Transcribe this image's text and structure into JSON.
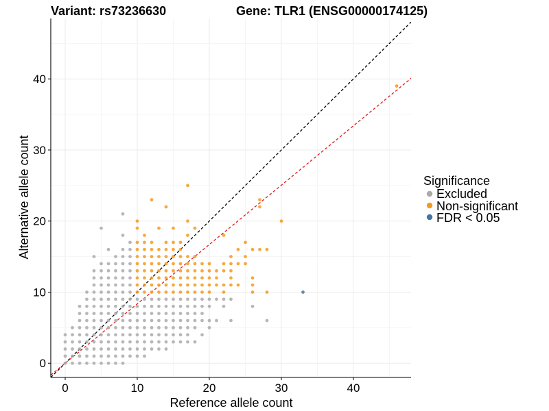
{
  "chart_data": {
    "type": "scatter",
    "title_left": "Variant: rs73236630",
    "title_right": "Gene: TLR1 (ENSG00000174125)",
    "xlabel": "Reference allele count",
    "ylabel": "Alternative allele count",
    "xlim": [
      -2,
      48
    ],
    "ylim": [
      -2,
      48.5
    ],
    "xticks": [
      0,
      10,
      20,
      30,
      40
    ],
    "yticks": [
      0,
      10,
      20,
      30,
      40
    ],
    "grid": true,
    "legend": {
      "title": "Significance",
      "position": "right",
      "entries": [
        {
          "label": "Excluded",
          "color": "#aaaaaa"
        },
        {
          "label": "Non-significant",
          "color": "#f59a1b"
        },
        {
          "label": "FDR < 0.05",
          "color": "#4575a8"
        }
      ]
    },
    "reference_lines": [
      {
        "name": "identity",
        "slope": 1,
        "intercept": 0,
        "color": "#000000",
        "style": "dashed"
      },
      {
        "name": "fit",
        "slope": 0.835,
        "intercept": 0,
        "color": "#e31a1c",
        "style": "dashed"
      }
    ],
    "series": [
      {
        "name": "Excluded",
        "color": "#aaaaaa",
        "points": [
          [
            0,
            0
          ],
          [
            0,
            1
          ],
          [
            0,
            2
          ],
          [
            0,
            3
          ],
          [
            0,
            4
          ],
          [
            1,
            0
          ],
          [
            1,
            1
          ],
          [
            1,
            2
          ],
          [
            1,
            3
          ],
          [
            1,
            4
          ],
          [
            1,
            5
          ],
          [
            2,
            0
          ],
          [
            2,
            1
          ],
          [
            2,
            2
          ],
          [
            2,
            3
          ],
          [
            2,
            4
          ],
          [
            2,
            5
          ],
          [
            2,
            6
          ],
          [
            2,
            7
          ],
          [
            2,
            8
          ],
          [
            3,
            0
          ],
          [
            3,
            1
          ],
          [
            3,
            2
          ],
          [
            3,
            3
          ],
          [
            3,
            4
          ],
          [
            3,
            5
          ],
          [
            3,
            6
          ],
          [
            3,
            7
          ],
          [
            3,
            8
          ],
          [
            3,
            9
          ],
          [
            3,
            10
          ],
          [
            4,
            0
          ],
          [
            4,
            1
          ],
          [
            4,
            2
          ],
          [
            4,
            3
          ],
          [
            4,
            4
          ],
          [
            4,
            5
          ],
          [
            4,
            6
          ],
          [
            4,
            7
          ],
          [
            4,
            8
          ],
          [
            4,
            9
          ],
          [
            4,
            10
          ],
          [
            4,
            11
          ],
          [
            4,
            12
          ],
          [
            4,
            13
          ],
          [
            4,
            15
          ],
          [
            5,
            0
          ],
          [
            5,
            1
          ],
          [
            5,
            2
          ],
          [
            5,
            3
          ],
          [
            5,
            4
          ],
          [
            5,
            5
          ],
          [
            5,
            6
          ],
          [
            5,
            7
          ],
          [
            5,
            8
          ],
          [
            5,
            9
          ],
          [
            5,
            10
          ],
          [
            5,
            11
          ],
          [
            5,
            12
          ],
          [
            5,
            13
          ],
          [
            5,
            14
          ],
          [
            5,
            19
          ],
          [
            6,
            0
          ],
          [
            6,
            1
          ],
          [
            6,
            2
          ],
          [
            6,
            3
          ],
          [
            6,
            4
          ],
          [
            6,
            5
          ],
          [
            6,
            6
          ],
          [
            6,
            7
          ],
          [
            6,
            8
          ],
          [
            6,
            9
          ],
          [
            6,
            10
          ],
          [
            6,
            11
          ],
          [
            6,
            12
          ],
          [
            6,
            13
          ],
          [
            6,
            14
          ],
          [
            6,
            16
          ],
          [
            7,
            0
          ],
          [
            7,
            1
          ],
          [
            7,
            2
          ],
          [
            7,
            3
          ],
          [
            7,
            4
          ],
          [
            7,
            5
          ],
          [
            7,
            6
          ],
          [
            7,
            7
          ],
          [
            7,
            8
          ],
          [
            7,
            9
          ],
          [
            7,
            10
          ],
          [
            7,
            11
          ],
          [
            7,
            12
          ],
          [
            7,
            13
          ],
          [
            7,
            14
          ],
          [
            7,
            15
          ],
          [
            8,
            0
          ],
          [
            8,
            1
          ],
          [
            8,
            2
          ],
          [
            8,
            3
          ],
          [
            8,
            4
          ],
          [
            8,
            5
          ],
          [
            8,
            6
          ],
          [
            8,
            7
          ],
          [
            8,
            8
          ],
          [
            8,
            9
          ],
          [
            8,
            10
          ],
          [
            8,
            11
          ],
          [
            8,
            12
          ],
          [
            8,
            13
          ],
          [
            8,
            14
          ],
          [
            8,
            15
          ],
          [
            8,
            16
          ],
          [
            8,
            18
          ],
          [
            8,
            21
          ],
          [
            9,
            1
          ],
          [
            9,
            2
          ],
          [
            9,
            3
          ],
          [
            9,
            4
          ],
          [
            9,
            5
          ],
          [
            9,
            6
          ],
          [
            9,
            7
          ],
          [
            9,
            8
          ],
          [
            9,
            9
          ],
          [
            9,
            10
          ],
          [
            9,
            11
          ],
          [
            9,
            12
          ],
          [
            9,
            13
          ],
          [
            9,
            14
          ],
          [
            9,
            15
          ],
          [
            9,
            16
          ],
          [
            9,
            17
          ],
          [
            10,
            1
          ],
          [
            10,
            2
          ],
          [
            10,
            3
          ],
          [
            10,
            4
          ],
          [
            10,
            5
          ],
          [
            10,
            6
          ],
          [
            10,
            7
          ],
          [
            10,
            8
          ],
          [
            10,
            9
          ],
          [
            11,
            1
          ],
          [
            11,
            2
          ],
          [
            11,
            3
          ],
          [
            11,
            4
          ],
          [
            11,
            5
          ],
          [
            11,
            6
          ],
          [
            11,
            7
          ],
          [
            11,
            8
          ],
          [
            11,
            9
          ],
          [
            12,
            2
          ],
          [
            12,
            3
          ],
          [
            12,
            4
          ],
          [
            12,
            5
          ],
          [
            12,
            6
          ],
          [
            12,
            7
          ],
          [
            12,
            8
          ],
          [
            12,
            9
          ],
          [
            13,
            2
          ],
          [
            13,
            3
          ],
          [
            13,
            4
          ],
          [
            13,
            5
          ],
          [
            13,
            6
          ],
          [
            13,
            7
          ],
          [
            13,
            8
          ],
          [
            13,
            9
          ],
          [
            14,
            2
          ],
          [
            14,
            3
          ],
          [
            14,
            4
          ],
          [
            14,
            5
          ],
          [
            14,
            6
          ],
          [
            14,
            7
          ],
          [
            14,
            8
          ],
          [
            14,
            9
          ],
          [
            15,
            3
          ],
          [
            15,
            4
          ],
          [
            15,
            5
          ],
          [
            15,
            6
          ],
          [
            15,
            7
          ],
          [
            15,
            8
          ],
          [
            15,
            9
          ],
          [
            16,
            3
          ],
          [
            16,
            4
          ],
          [
            16,
            5
          ],
          [
            16,
            6
          ],
          [
            16,
            7
          ],
          [
            16,
            8
          ],
          [
            16,
            9
          ],
          [
            17,
            3
          ],
          [
            17,
            4
          ],
          [
            17,
            5
          ],
          [
            17,
            6
          ],
          [
            17,
            7
          ],
          [
            17,
            8
          ],
          [
            17,
            9
          ],
          [
            18,
            3
          ],
          [
            18,
            5
          ],
          [
            18,
            6
          ],
          [
            18,
            7
          ],
          [
            18,
            8
          ],
          [
            18,
            9
          ],
          [
            19,
            4
          ],
          [
            19,
            6
          ],
          [
            19,
            7
          ],
          [
            19,
            8
          ],
          [
            19,
            9
          ],
          [
            20,
            5
          ],
          [
            20,
            6
          ],
          [
            20,
            8
          ],
          [
            20,
            9
          ],
          [
            21,
            6
          ],
          [
            21,
            9
          ],
          [
            22,
            8
          ],
          [
            22,
            9
          ],
          [
            23,
            6
          ],
          [
            23,
            9
          ],
          [
            26,
            8
          ],
          [
            28,
            6
          ]
        ]
      },
      {
        "name": "Non-significant",
        "color": "#f59a1b",
        "points": [
          [
            10,
            10
          ],
          [
            10,
            11
          ],
          [
            10,
            12
          ],
          [
            10,
            13
          ],
          [
            10,
            14
          ],
          [
            10,
            15
          ],
          [
            10,
            16
          ],
          [
            10,
            17
          ],
          [
            10,
            19
          ],
          [
            10,
            20
          ],
          [
            11,
            10
          ],
          [
            11,
            11
          ],
          [
            11,
            12
          ],
          [
            11,
            13
          ],
          [
            11,
            14
          ],
          [
            11,
            15
          ],
          [
            11,
            16
          ],
          [
            11,
            17
          ],
          [
            11,
            18
          ],
          [
            12,
            10
          ],
          [
            12,
            11
          ],
          [
            12,
            12
          ],
          [
            12,
            13
          ],
          [
            12,
            14
          ],
          [
            12,
            15
          ],
          [
            12,
            16
          ],
          [
            12,
            17
          ],
          [
            12,
            23
          ],
          [
            13,
            10
          ],
          [
            13,
            11
          ],
          [
            13,
            12
          ],
          [
            13,
            13
          ],
          [
            13,
            14
          ],
          [
            13,
            15
          ],
          [
            13,
            16
          ],
          [
            13,
            19
          ],
          [
            14,
            10
          ],
          [
            14,
            11
          ],
          [
            14,
            12
          ],
          [
            14,
            13
          ],
          [
            14,
            14
          ],
          [
            14,
            15
          ],
          [
            14,
            16
          ],
          [
            14,
            17
          ],
          [
            14,
            22
          ],
          [
            15,
            10
          ],
          [
            15,
            11
          ],
          [
            15,
            12
          ],
          [
            15,
            13
          ],
          [
            15,
            14
          ],
          [
            15,
            15
          ],
          [
            15,
            16
          ],
          [
            15,
            17
          ],
          [
            15,
            19
          ],
          [
            16,
            10
          ],
          [
            16,
            11
          ],
          [
            16,
            12
          ],
          [
            16,
            13
          ],
          [
            16,
            14
          ],
          [
            16,
            15
          ],
          [
            16,
            16
          ],
          [
            16,
            17
          ],
          [
            17,
            10
          ],
          [
            17,
            11
          ],
          [
            17,
            12
          ],
          [
            17,
            13
          ],
          [
            17,
            14
          ],
          [
            17,
            15
          ],
          [
            17,
            18
          ],
          [
            17,
            20
          ],
          [
            17,
            25
          ],
          [
            18,
            10
          ],
          [
            18,
            11
          ],
          [
            18,
            12
          ],
          [
            18,
            13
          ],
          [
            18,
            14
          ],
          [
            18,
            15
          ],
          [
            18,
            19
          ],
          [
            19,
            10
          ],
          [
            19,
            11
          ],
          [
            19,
            12
          ],
          [
            19,
            13
          ],
          [
            19,
            14
          ],
          [
            20,
            10
          ],
          [
            20,
            11
          ],
          [
            20,
            12
          ],
          [
            20,
            13
          ],
          [
            20,
            14
          ],
          [
            21,
            11
          ],
          [
            21,
            12
          ],
          [
            21,
            13
          ],
          [
            22,
            10
          ],
          [
            22,
            11
          ],
          [
            22,
            13
          ],
          [
            22,
            14
          ],
          [
            22,
            18
          ],
          [
            23,
            11
          ],
          [
            23,
            12
          ],
          [
            23,
            13
          ],
          [
            23,
            14
          ],
          [
            23,
            15
          ],
          [
            24,
            11
          ],
          [
            24,
            14
          ],
          [
            24,
            16
          ],
          [
            25,
            14
          ],
          [
            25,
            15
          ],
          [
            25,
            17
          ],
          [
            26,
            10
          ],
          [
            26,
            11
          ],
          [
            26,
            12
          ],
          [
            26,
            16
          ],
          [
            27,
            16
          ],
          [
            27,
            22
          ],
          [
            27,
            23
          ],
          [
            28,
            10
          ],
          [
            28,
            16
          ],
          [
            30,
            20
          ],
          [
            46,
            39
          ]
        ]
      },
      {
        "name": "FDR < 0.05",
        "color": "#4575a8",
        "points": [
          [
            33,
            10
          ]
        ]
      }
    ]
  }
}
